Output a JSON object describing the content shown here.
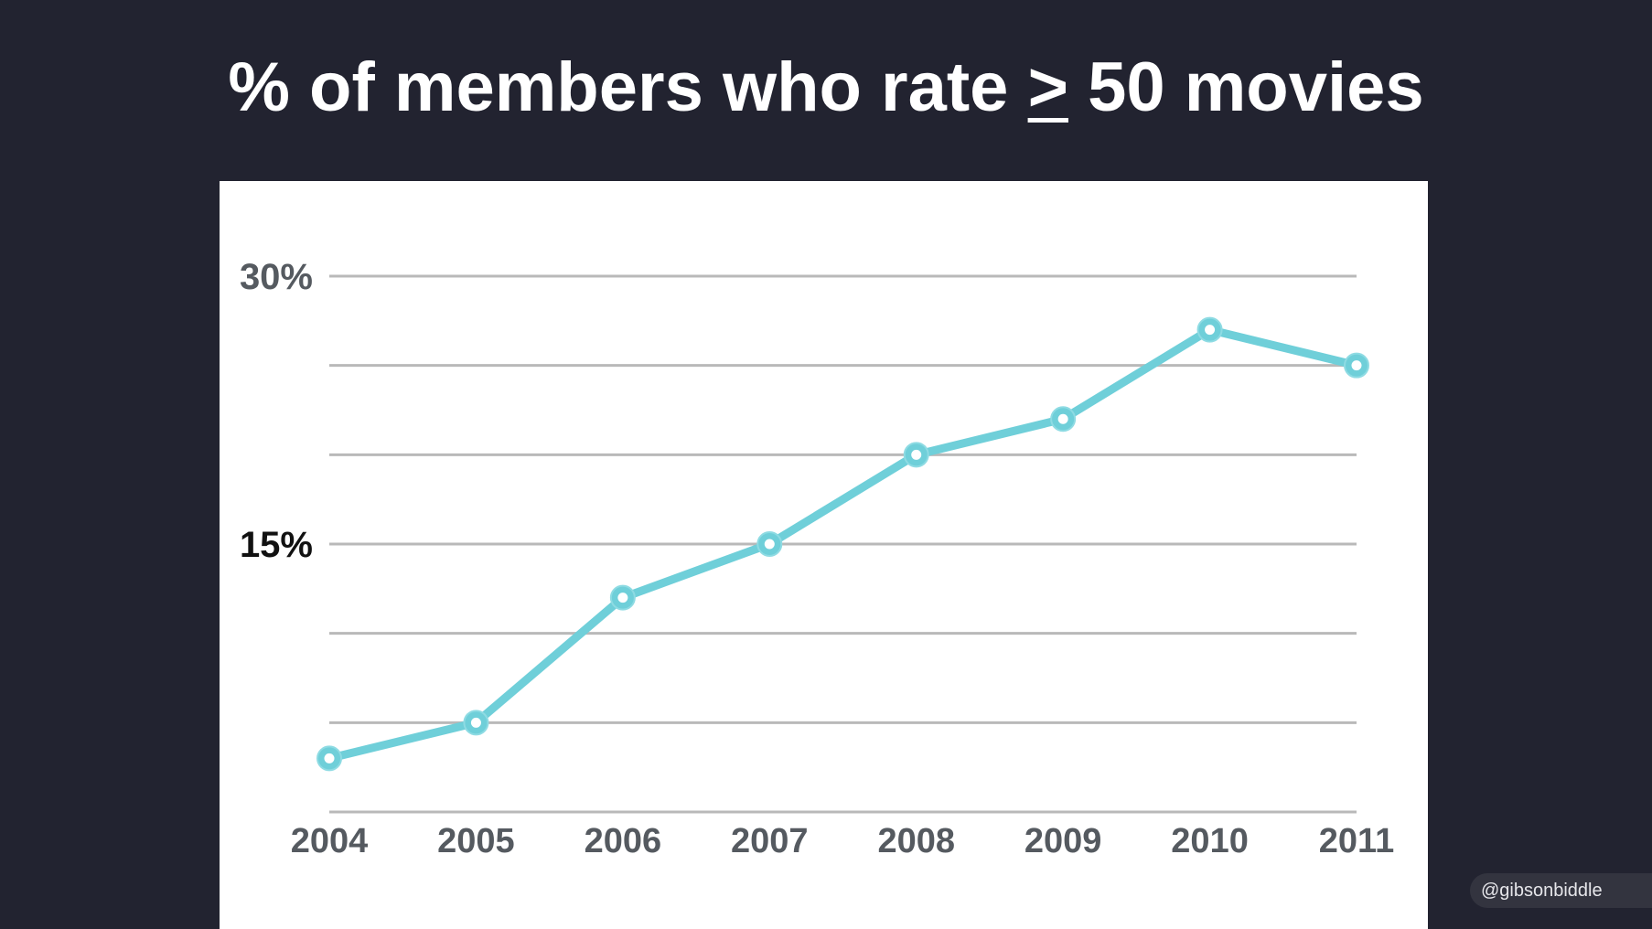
{
  "title": {
    "prefix": "% of members who rate ",
    "symbol": ">",
    "suffix": " 50 movies"
  },
  "attribution": "@gibsonbiddle",
  "colors": {
    "background": "#222330",
    "line": "#6fcfd9",
    "marker_fill": "#ffffff",
    "grid": "#b9b9b9"
  },
  "chart_data": {
    "type": "line",
    "title": "% of members who rate > 50 movies",
    "x": [
      "2004",
      "2005",
      "2006",
      "2007",
      "2008",
      "2009",
      "2010",
      "2011"
    ],
    "series": [
      {
        "values": [
          3,
          5,
          12,
          15,
          20,
          22,
          27,
          25
        ]
      }
    ],
    "ylim": [
      0,
      30
    ],
    "y_gridlines": [
      0,
      5,
      10,
      15,
      20,
      25,
      30
    ],
    "y_tick_labels": [
      {
        "value": 30,
        "label": "30%",
        "color": "#555a60"
      },
      {
        "value": 15,
        "label": "15%",
        "color": "#111111"
      }
    ],
    "grid": true,
    "legend": "none"
  }
}
